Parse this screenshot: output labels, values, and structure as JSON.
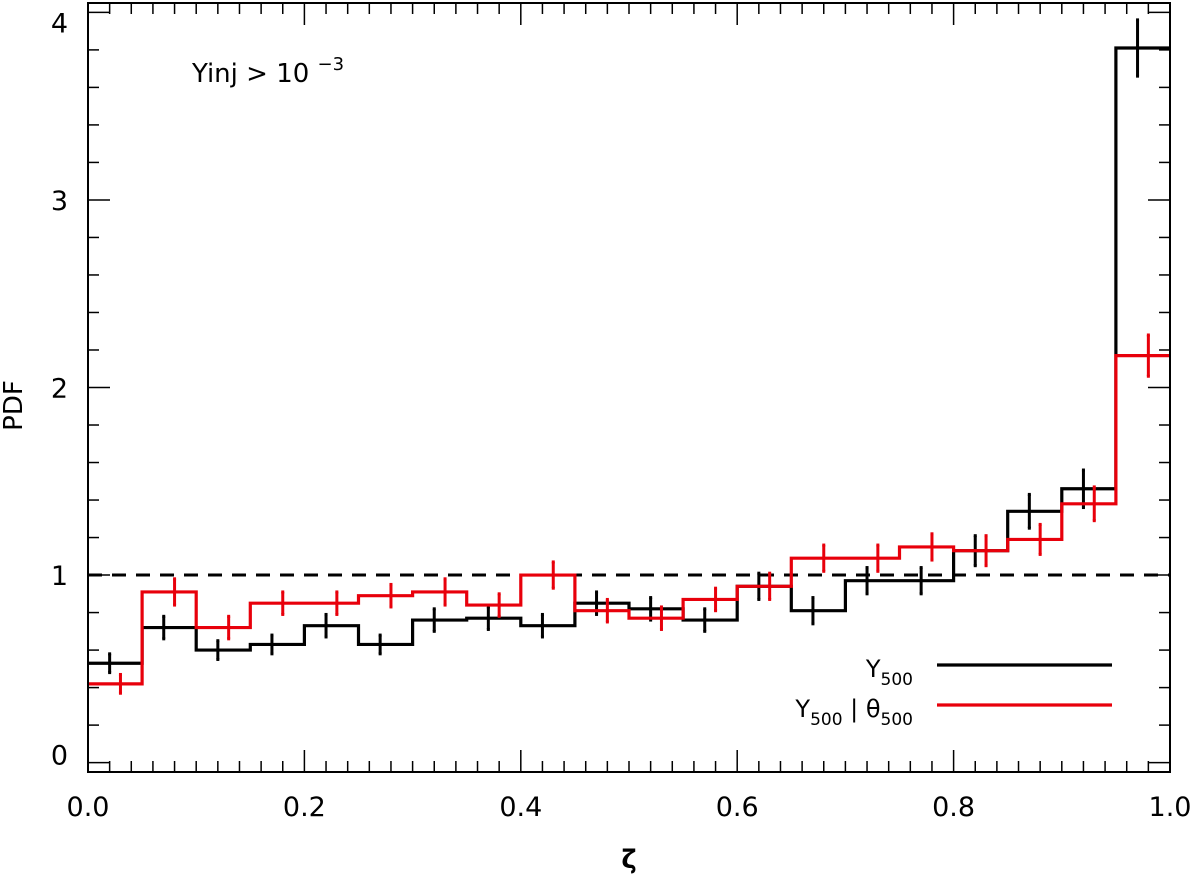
{
  "chart_data": {
    "type": "line",
    "xlabel": "ζ",
    "ylabel": "PDF",
    "xlim": [
      0,
      1
    ],
    "ylim": [
      -0.05,
      4.05
    ],
    "xticks": [
      "0.0",
      "0.2",
      "0.4",
      "0.6",
      "0.8",
      "1.0"
    ],
    "yticks": [
      "0",
      "1",
      "2",
      "3",
      "4"
    ],
    "xtick_values": [
      0,
      0.2,
      0.4,
      0.6,
      0.8,
      1.0
    ],
    "ytick_values": [
      0,
      1,
      2,
      3,
      4
    ],
    "annotation": {
      "base": "Yinj > 10",
      "exponent": "−3"
    },
    "reference_line": {
      "y": 1.0,
      "style": "dashed"
    },
    "bin_edges": [
      0,
      0.05,
      0.1,
      0.15,
      0.2,
      0.25,
      0.3,
      0.35,
      0.4,
      0.45,
      0.5,
      0.55,
      0.6,
      0.65,
      0.7,
      0.75,
      0.8,
      0.85,
      0.9,
      0.95,
      1.0
    ],
    "legend_position": "bottom-right",
    "series": [
      {
        "legend_main": "Y",
        "legend_sub": "500",
        "legend_suffix": "",
        "legend_sub2": "",
        "color": "#000000",
        "values": [
          0.53,
          0.72,
          0.6,
          0.63,
          0.73,
          0.63,
          0.76,
          0.77,
          0.73,
          0.85,
          0.82,
          0.76,
          0.94,
          0.81,
          0.97,
          0.97,
          1.13,
          1.34,
          1.46,
          3.81
        ],
        "x": [
          0.02,
          0.07,
          0.12,
          0.17,
          0.22,
          0.27,
          0.32,
          0.37,
          0.42,
          0.47,
          0.52,
          0.57,
          0.62,
          0.67,
          0.72,
          0.77,
          0.82,
          0.87,
          0.92,
          0.97
        ],
        "errors": [
          0.05,
          0.06,
          0.05,
          0.05,
          0.06,
          0.05,
          0.06,
          0.06,
          0.06,
          0.06,
          0.06,
          0.06,
          0.07,
          0.07,
          0.07,
          0.07,
          0.08,
          0.09,
          0.1,
          0.15
        ]
      },
      {
        "legend_main": "Y",
        "legend_sub": "500",
        "legend_suffix": " | θ",
        "legend_sub2": "500",
        "color": "#e8000b",
        "values": [
          0.42,
          0.91,
          0.72,
          0.85,
          0.85,
          0.89,
          0.91,
          0.84,
          1.0,
          0.81,
          0.77,
          0.87,
          0.94,
          1.09,
          1.09,
          1.15,
          1.13,
          1.19,
          1.38,
          2.17
        ],
        "x": [
          0.03,
          0.08,
          0.13,
          0.18,
          0.23,
          0.28,
          0.33,
          0.38,
          0.43,
          0.48,
          0.53,
          0.58,
          0.63,
          0.68,
          0.73,
          0.78,
          0.83,
          0.88,
          0.93,
          0.98
        ],
        "errors": [
          0.05,
          0.07,
          0.06,
          0.06,
          0.06,
          0.06,
          0.07,
          0.06,
          0.07,
          0.06,
          0.06,
          0.06,
          0.07,
          0.07,
          0.07,
          0.07,
          0.08,
          0.08,
          0.09,
          0.11
        ]
      }
    ]
  }
}
